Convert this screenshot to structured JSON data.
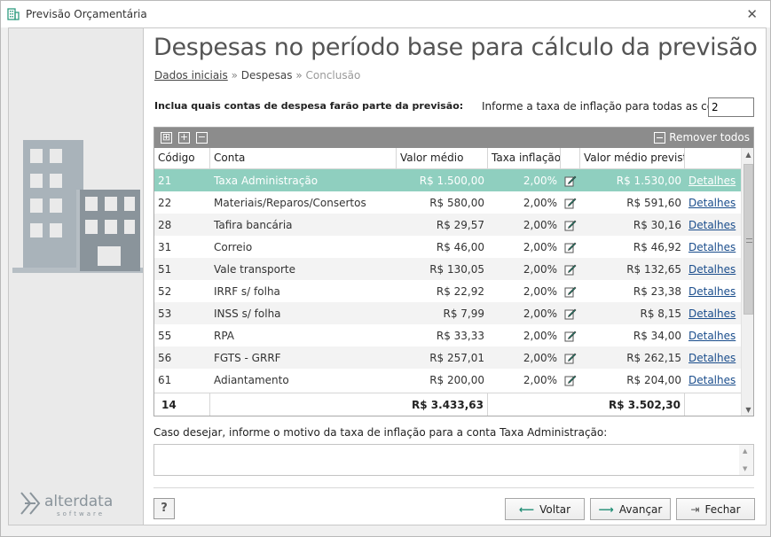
{
  "window": {
    "title": "Previsão Orçamentária"
  },
  "page": {
    "title": "Despesas no período base para cálculo da previsão",
    "breadcrumb": {
      "step1": "Dados iniciais",
      "sep": "»",
      "step2": "Despesas",
      "step3": "Conclusão"
    },
    "include_label": "Inclua quais contas de despesa farão parte da previsão:",
    "inflation_label": "Informe a taxa de inflação para todas as contas:",
    "inflation_value": "2"
  },
  "grid": {
    "remove_all": "Remover todos",
    "headers": {
      "code": "Código",
      "conta": "Conta",
      "valor": "Valor médio",
      "taxa": "Taxa inflação",
      "previsto": "Valor médio previsto"
    },
    "rows": [
      {
        "code": "21",
        "conta": "Taxa Administração",
        "valor": "R$ 1.500,00",
        "taxa": "2,00%",
        "previsto": "R$ 1.530,00",
        "detalhes": "Detalhes"
      },
      {
        "code": "22",
        "conta": "Materiais/Reparos/Consertos",
        "valor": "R$ 580,00",
        "taxa": "2,00%",
        "previsto": "R$ 591,60",
        "detalhes": "Detalhes"
      },
      {
        "code": "28",
        "conta": "Tafira bancária",
        "valor": "R$ 29,57",
        "taxa": "2,00%",
        "previsto": "R$ 30,16",
        "detalhes": "Detalhes"
      },
      {
        "code": "31",
        "conta": "Correio",
        "valor": "R$ 46,00",
        "taxa": "2,00%",
        "previsto": "R$ 46,92",
        "detalhes": "Detalhes"
      },
      {
        "code": "51",
        "conta": "Vale transporte",
        "valor": "R$ 130,05",
        "taxa": "2,00%",
        "previsto": "R$ 132,65",
        "detalhes": "Detalhes"
      },
      {
        "code": "52",
        "conta": "IRRF s/ folha",
        "valor": "R$ 22,92",
        "taxa": "2,00%",
        "previsto": "R$ 23,38",
        "detalhes": "Detalhes"
      },
      {
        "code": "53",
        "conta": "INSS s/ folha",
        "valor": "R$ 7,99",
        "taxa": "2,00%",
        "previsto": "R$ 8,15",
        "detalhes": "Detalhes"
      },
      {
        "code": "55",
        "conta": "RPA",
        "valor": "R$ 33,33",
        "taxa": "2,00%",
        "previsto": "R$ 34,00",
        "detalhes": "Detalhes"
      },
      {
        "code": "56",
        "conta": "FGTS - GRRF",
        "valor": "R$ 257,01",
        "taxa": "2,00%",
        "previsto": "R$ 262,15",
        "detalhes": "Detalhes"
      },
      {
        "code": "61",
        "conta": "Adiantamento",
        "valor": "R$ 200,00",
        "taxa": "2,00%",
        "previsto": "R$ 204,00",
        "detalhes": "Detalhes"
      }
    ],
    "footer": {
      "count": "14",
      "valor_total": "R$ 3.433,63",
      "previsto_total": "R$ 3.502,30"
    }
  },
  "motivo": {
    "label": "Caso desejar, informe o motivo da taxa de inflação para a conta Taxa Administração:",
    "value": ""
  },
  "buttons": {
    "help": "?",
    "voltar": "Voltar",
    "avancar": "Avançar",
    "fechar": "Fechar"
  },
  "logo": {
    "text": "alterdata",
    "sub": "software"
  },
  "colors": {
    "selected_row": "#8fcfbf",
    "toolbar": "#8c8c8c",
    "accent": "#1d8c73"
  }
}
